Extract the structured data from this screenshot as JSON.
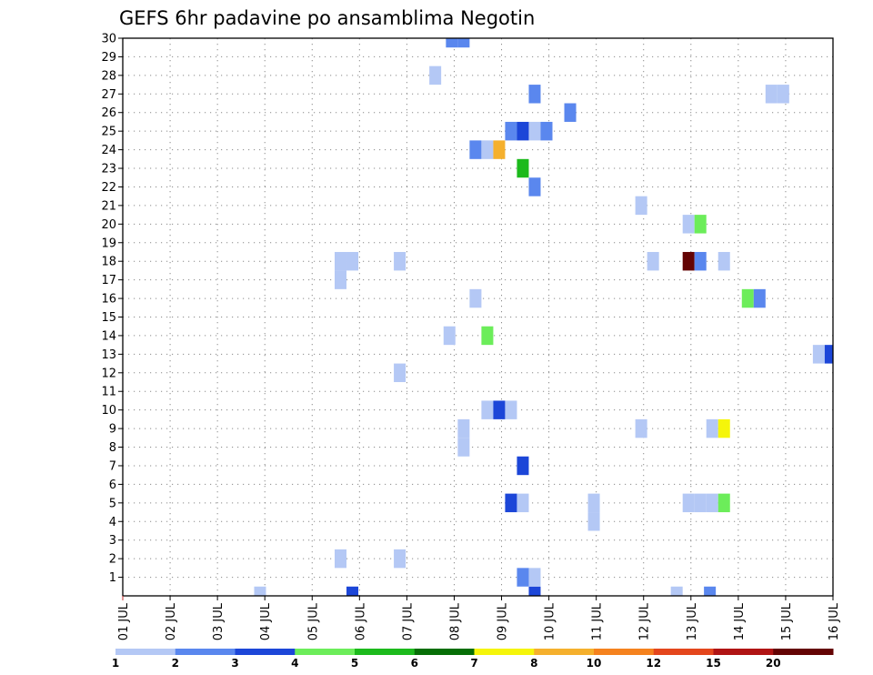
{
  "chart_data": {
    "type": "heatmap",
    "title": "GEFS 6hr padavine po ansamblima Negotin",
    "xlabel": "",
    "ylabel": "",
    "x_tick_labels": [
      "01 JUL",
      "02 JUL",
      "03 JUL",
      "04 JUL",
      "05 JUL",
      "06 JUL",
      "07 JUL",
      "08 JUL",
      "09 JUL",
      "10 JUL",
      "11 JUL",
      "12 JUL",
      "13 JUL",
      "14 JUL",
      "15 JUL",
      "16 JUL"
    ],
    "y_tick_labels": [
      "1",
      "2",
      "3",
      "4",
      "5",
      "6",
      "7",
      "8",
      "9",
      "10",
      "11",
      "12",
      "13",
      "14",
      "15",
      "16",
      "17",
      "18",
      "19",
      "20",
      "21",
      "22",
      "23",
      "24",
      "25",
      "26",
      "27",
      "28",
      "29",
      "30"
    ],
    "xlim": [
      0,
      15
    ],
    "ylim": [
      0,
      30
    ],
    "grid": true,
    "colorbar": {
      "placement": "bottom",
      "labels": [
        "1",
        "2",
        "3",
        "4",
        "5",
        "6",
        "7",
        "8",
        "10",
        "12",
        "15",
        "20"
      ],
      "colors": [
        "#b4c8f5",
        "#5a87ee",
        "#1c46d8",
        "#6ced5a",
        "#1cba1c",
        "#066e06",
        "#f5f50a",
        "#f5b02d",
        "#f5821e",
        "#e4461c",
        "#b01414",
        "#640404"
      ]
    },
    "cells": [
      {
        "member": 0,
        "day": 2.9,
        "c": "#b4c8f5"
      },
      {
        "member": 0,
        "day": 4.85,
        "c": "#1c46d8"
      },
      {
        "member": 0,
        "day": 8.7,
        "c": "#1c46d8"
      },
      {
        "member": 0,
        "day": 11.7,
        "c": "#b4c8f5"
      },
      {
        "member": 0,
        "day": 12.4,
        "c": "#5a87ee"
      },
      {
        "member": 1,
        "day": 8.45,
        "c": "#5a87ee"
      },
      {
        "member": 1,
        "day": 8.7,
        "c": "#b4c8f5"
      },
      {
        "member": 2,
        "day": 4.6,
        "c": "#b4c8f5"
      },
      {
        "member": 2,
        "day": 5.85,
        "c": "#b4c8f5"
      },
      {
        "member": 4,
        "day": 9.95,
        "c": "#b4c8f5"
      },
      {
        "member": 5,
        "day": 8.2,
        "c": "#1c46d8"
      },
      {
        "member": 5,
        "day": 8.45,
        "c": "#b4c8f5"
      },
      {
        "member": 5,
        "day": 9.95,
        "c": "#b4c8f5"
      },
      {
        "member": 5,
        "day": 11.95,
        "c": "#b4c8f5"
      },
      {
        "member": 5,
        "day": 12.2,
        "c": "#b4c8f5"
      },
      {
        "member": 5,
        "day": 12.45,
        "c": "#b4c8f5"
      },
      {
        "member": 5,
        "day": 12.7,
        "c": "#6ced5a"
      },
      {
        "member": 7,
        "day": 8.45,
        "c": "#1c46d8"
      },
      {
        "member": 8,
        "day": 7.2,
        "c": "#b4c8f5"
      },
      {
        "member": 9,
        "day": 7.2,
        "c": "#b4c8f5"
      },
      {
        "member": 9,
        "day": 10.95,
        "c": "#b4c8f5"
      },
      {
        "member": 9,
        "day": 12.45,
        "c": "#b4c8f5"
      },
      {
        "member": 9,
        "day": 12.7,
        "c": "#f5f50a"
      },
      {
        "member": 10,
        "day": 7.7,
        "c": "#b4c8f5"
      },
      {
        "member": 10,
        "day": 7.95,
        "c": "#1c46d8"
      },
      {
        "member": 10,
        "day": 8.2,
        "c": "#b4c8f5"
      },
      {
        "member": 12,
        "day": 5.85,
        "c": "#b4c8f5"
      },
      {
        "member": 13,
        "day": 14.7,
        "c": "#b4c8f5"
      },
      {
        "member": 13,
        "day": 14.95,
        "c": "#1c46d8"
      },
      {
        "member": 14,
        "day": 6.9,
        "c": "#b4c8f5"
      },
      {
        "member": 14,
        "day": 7.7,
        "c": "#6ced5a"
      },
      {
        "member": 16,
        "day": 7.45,
        "c": "#b4c8f5"
      },
      {
        "member": 16,
        "day": 13.2,
        "c": "#6ced5a"
      },
      {
        "member": 16,
        "day": 13.45,
        "c": "#5a87ee"
      },
      {
        "member": 17,
        "day": 4.6,
        "c": "#b4c8f5"
      },
      {
        "member": 18,
        "day": 4.6,
        "c": "#b4c8f5"
      },
      {
        "member": 18,
        "day": 4.85,
        "c": "#b4c8f5"
      },
      {
        "member": 18,
        "day": 5.85,
        "c": "#b4c8f5"
      },
      {
        "member": 18,
        "day": 11.2,
        "c": "#b4c8f5"
      },
      {
        "member": 18,
        "day": 11.95,
        "c": "#640404"
      },
      {
        "member": 18,
        "day": 12.2,
        "c": "#5a87ee"
      },
      {
        "member": 18,
        "day": 12.7,
        "c": "#b4c8f5"
      },
      {
        "member": 20,
        "day": 11.95,
        "c": "#b4c8f5"
      },
      {
        "member": 20,
        "day": 12.2,
        "c": "#6ced5a"
      },
      {
        "member": 21,
        "day": 10.95,
        "c": "#b4c8f5"
      },
      {
        "member": 22,
        "day": 8.7,
        "c": "#5a87ee"
      },
      {
        "member": 23,
        "day": 8.45,
        "c": "#1cba1c"
      },
      {
        "member": 24,
        "day": 7.45,
        "c": "#5a87ee"
      },
      {
        "member": 24,
        "day": 7.7,
        "c": "#b4c8f5"
      },
      {
        "member": 24,
        "day": 7.95,
        "c": "#f5b02d"
      },
      {
        "member": 25,
        "day": 8.2,
        "c": "#5a87ee"
      },
      {
        "member": 25,
        "day": 8.45,
        "c": "#1c46d8"
      },
      {
        "member": 25,
        "day": 8.7,
        "c": "#b4c8f5"
      },
      {
        "member": 25,
        "day": 8.95,
        "c": "#5a87ee"
      },
      {
        "member": 26,
        "day": 9.45,
        "c": "#5a87ee"
      },
      {
        "member": 27,
        "day": 8.7,
        "c": "#5a87ee"
      },
      {
        "member": 27,
        "day": 13.7,
        "c": "#b4c8f5"
      },
      {
        "member": 27,
        "day": 13.95,
        "c": "#b4c8f5"
      },
      {
        "member": 28,
        "day": 6.6,
        "c": "#b4c8f5"
      },
      {
        "member": 30,
        "day": 6.95,
        "c": "#5a87ee"
      },
      {
        "member": 30,
        "day": 7.2,
        "c": "#5a87ee"
      }
    ]
  }
}
